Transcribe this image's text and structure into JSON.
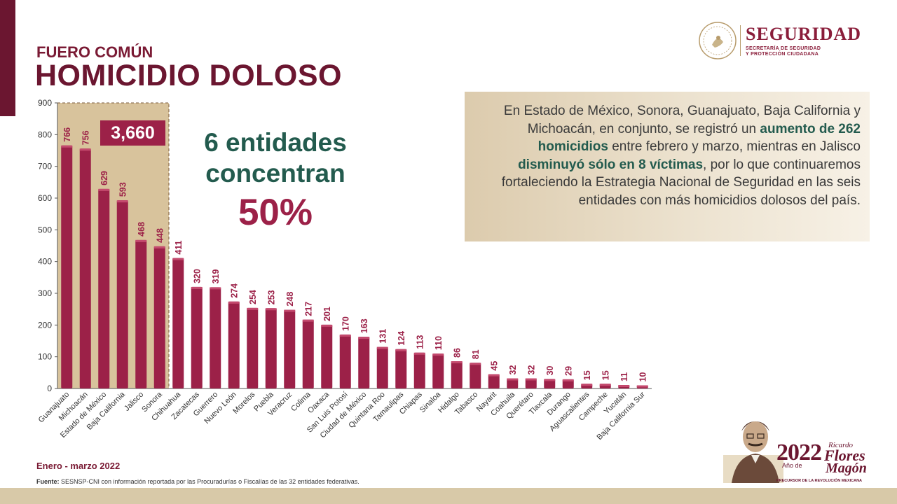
{
  "header": {
    "eyebrow": "FUERO COMÚN",
    "title": "HOMICIDIO DOLOSO"
  },
  "logo": {
    "title": "SEGURIDAD",
    "subtitle_line1": "SECRETARÍA DE SEGURIDAD",
    "subtitle_line2": "Y PROTECCIÓN CIUDADANA"
  },
  "highlight": {
    "total": "3,660",
    "line1": "6 entidades",
    "line2": "concentran",
    "percent": "50%"
  },
  "infobox": {
    "part1": "En Estado de México, Sonora, Guanajuato, Baja California y Michoacán, en conjunto, se registró un",
    "highlight1": "aumento de 262 homicidios",
    "part2": "entre febrero y marzo, mientras en Jalisco",
    "highlight2": "disminuyó sólo en 8 víctimas",
    "part3": ", por lo que continuaremos fortaleciendo la Estrategia Nacional de Seguridad en las seis entidades con más homicidios dolosos del país."
  },
  "footer": {
    "period": "Enero - marzo 2022",
    "source_label": "Fuente:",
    "source_text": "SESNSP-CNI con información reportada por las Procuradurías o Fiscalías de las 32 entidades federativas."
  },
  "emblem": {
    "year": "2022",
    "anio_de": "Año de",
    "name1": "Ricardo",
    "name2": "Flores",
    "name3": "Magón",
    "motto": "PRECURSOR DE LA REVOLUCIÓN MEXICANA"
  },
  "colors": {
    "bar": "#9c2148",
    "highlight_box": "#d8c39c",
    "green": "#235b4e",
    "maroon": "#6b1630"
  },
  "chart_data": {
    "type": "bar",
    "categories": [
      "Guanajuato",
      "Michoacán",
      "Estado de México",
      "Baja California",
      "Jalisco",
      "Sonora",
      "Chihuahua",
      "Zacatecas",
      "Guerrero",
      "Nuevo León",
      "Morelos",
      "Puebla",
      "Veracruz",
      "Colima",
      "Oaxaca",
      "San Luis Potosí",
      "Ciudad de México",
      "Quintana Roo",
      "Tamaulipas",
      "Chiapas",
      "Sinaloa",
      "Hidalgo",
      "Tabasco",
      "Nayarit",
      "Coahuila",
      "Querétaro",
      "Tlaxcala",
      "Durango",
      "Aguascalientes",
      "Campeche",
      "Yucatán",
      "Baja California Sur"
    ],
    "values": [
      766,
      756,
      629,
      593,
      468,
      448,
      411,
      320,
      319,
      274,
      254,
      253,
      248,
      217,
      201,
      170,
      163,
      131,
      124,
      113,
      110,
      86,
      81,
      45,
      32,
      32,
      30,
      29,
      15,
      15,
      11,
      10
    ],
    "ylim": [
      0,
      900
    ],
    "yticks": [
      0,
      100,
      200,
      300,
      400,
      500,
      600,
      700,
      800,
      900
    ],
    "highlighted_count": 6,
    "grid": false
  }
}
